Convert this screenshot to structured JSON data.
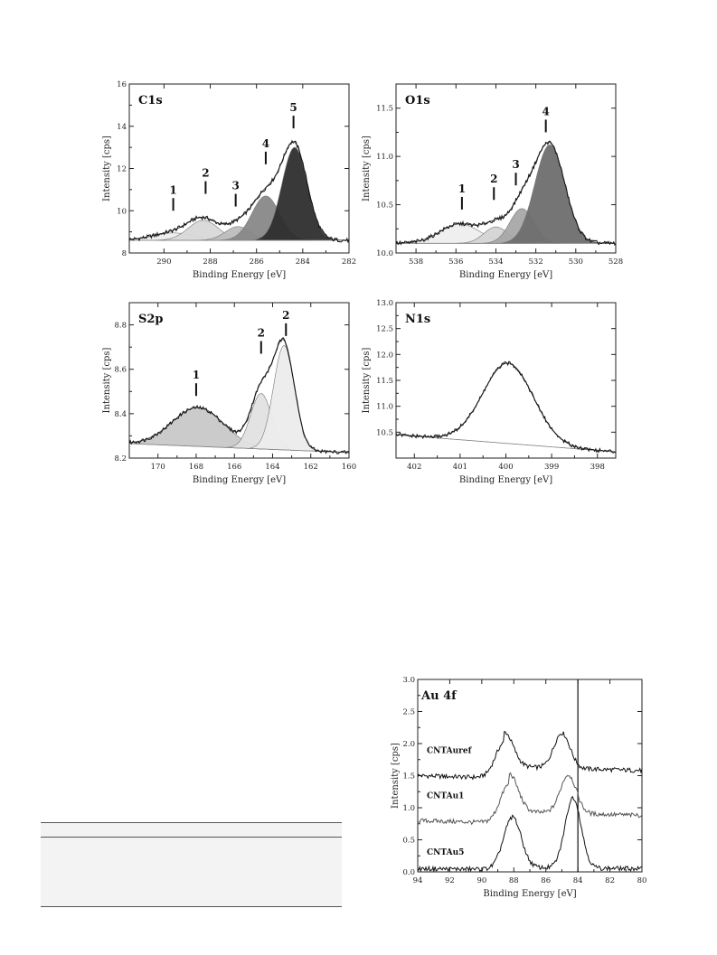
{
  "chart_data": [
    {
      "type": "area",
      "panel_label": "C1s",
      "xlabel": "Binding Energy [eV]",
      "ylabel": "Intensity [cps]",
      "xlim": [
        291.5,
        282
      ],
      "ylim": [
        8,
        16
      ],
      "xticks": [
        290,
        288,
        286,
        284,
        282
      ],
      "yticks": [
        8,
        10,
        12,
        14,
        16
      ],
      "background": 8.6,
      "peaks": [
        {
          "label": "1",
          "center": 289.6,
          "height": 0.35,
          "width": 0.9,
          "fill": "#eeeeee"
        },
        {
          "label": "2",
          "center": 288.3,
          "height": 0.95,
          "width": 0.65,
          "fill": "#d8d8d8"
        },
        {
          "label": "3",
          "center": 286.8,
          "height": 0.65,
          "width": 0.55,
          "fill": "#bdbdbd"
        },
        {
          "label": "4",
          "center": 285.6,
          "height": 2.1,
          "width": 0.6,
          "fill": "#888888"
        },
        {
          "label": "5",
          "center": 284.35,
          "height": 4.4,
          "width": 0.55,
          "fill": "#2e2e2e"
        }
      ],
      "markers": [
        {
          "label": "1",
          "x": 289.6,
          "y": 10.0
        },
        {
          "label": "2",
          "x": 288.2,
          "y": 10.8
        },
        {
          "label": "3",
          "x": 286.9,
          "y": 10.2
        },
        {
          "label": "4",
          "x": 285.6,
          "y": 12.2
        },
        {
          "label": "5",
          "x": 284.4,
          "y": 13.9
        }
      ]
    },
    {
      "type": "area",
      "panel_label": "O1s",
      "xlabel": "Binding Energy [eV]",
      "ylabel": "Intensity [cps]",
      "xlim": [
        539,
        528
      ],
      "ylim": [
        10,
        11.75
      ],
      "xticks": [
        538,
        536,
        534,
        532,
        530,
        528
      ],
      "yticks": [
        10.0,
        10.5,
        11.0,
        11.5
      ],
      "background": 10.1,
      "peaks": [
        {
          "label": "1",
          "center": 535.8,
          "height": 0.2,
          "width": 1.0,
          "fill": "#eeeeee"
        },
        {
          "label": "2",
          "center": 534.0,
          "height": 0.17,
          "width": 0.6,
          "fill": "#d4d4d4"
        },
        {
          "label": "3",
          "center": 532.7,
          "height": 0.36,
          "width": 0.6,
          "fill": "#a8a8a8"
        },
        {
          "label": "4",
          "center": 531.3,
          "height": 1.02,
          "width": 0.75,
          "fill": "#6e6e6e"
        }
      ],
      "markers": [
        {
          "label": "1",
          "x": 535.7,
          "y": 10.45
        },
        {
          "label": "2",
          "x": 534.1,
          "y": 10.55
        },
        {
          "label": "3",
          "x": 533.0,
          "y": 10.7
        },
        {
          "label": "4",
          "x": 531.5,
          "y": 11.25
        }
      ]
    },
    {
      "type": "area",
      "panel_label": "S2p",
      "xlabel": "Binding Energy [eV]",
      "ylabel": "Intensity [cps]",
      "xlim": [
        171.5,
        160
      ],
      "ylim": [
        8.2,
        8.9
      ],
      "xticks": [
        170,
        168,
        166,
        164,
        162,
        160
      ],
      "yticks": [
        8.2,
        8.4,
        8.6,
        8.8
      ],
      "background_start": 8.265,
      "background_end": 8.225,
      "peaks": [
        {
          "label": "1",
          "center": 167.9,
          "height": 0.175,
          "width": 1.35,
          "fill": "#c8c8c8"
        },
        {
          "label": "2",
          "center": 164.6,
          "height": 0.25,
          "width": 0.55,
          "fill": "#e2e2e2"
        },
        {
          "label": "2",
          "center": 163.4,
          "height": 0.47,
          "width": 0.55,
          "fill": "#ececec"
        }
      ],
      "markers": [
        {
          "label": "1",
          "x": 168.0,
          "y": 8.48
        },
        {
          "label": "2",
          "x": 164.6,
          "y": 8.67
        },
        {
          "label": "2",
          "x": 163.3,
          "y": 8.75
        }
      ]
    },
    {
      "type": "line",
      "panel_label": "N1s",
      "xlabel": "Binding Energy [eV]",
      "ylabel": "Intensity [cps]",
      "xlim": [
        402.4,
        397.6
      ],
      "ylim": [
        10,
        13
      ],
      "xticks": [
        402,
        401,
        400,
        399,
        398
      ],
      "yticks": [
        10.5,
        11.0,
        11.5,
        12.0,
        12.5,
        13.0
      ],
      "background_start": 10.45,
      "background_end": 10.12,
      "peaks": [
        {
          "label": "",
          "center": 399.95,
          "height": 1.55,
          "width": 0.55,
          "fill": "none"
        }
      ],
      "markers": []
    },
    {
      "type": "line",
      "panel_label": "Au 4f",
      "xlabel": "Binding Energy [eV]",
      "ylabel": "Intensity [cps]",
      "xlim": [
        94,
        80
      ],
      "ylim": [
        0,
        3.0
      ],
      "xticks": [
        94,
        92,
        90,
        88,
        86,
        84,
        82,
        80
      ],
      "yticks": [
        0.0,
        0.5,
        1.0,
        1.5,
        2.0,
        2.5,
        3.0
      ],
      "reference_line": 84.0,
      "series": [
        {
          "name": "CNTAuref",
          "baseline_left": 1.5,
          "baseline_right": 1.4,
          "step": 0.3,
          "peak1": {
            "center": 88.6,
            "height": 0.55
          },
          "peak2": {
            "center": 85.0,
            "height": 0.55
          }
        },
        {
          "name": "CNTAu1",
          "baseline_left": 0.8,
          "baseline_right": 0.7,
          "step": 0.3,
          "peak1": {
            "center": 88.3,
            "height": 0.6
          },
          "peak2": {
            "center": 84.6,
            "height": 0.6
          }
        },
        {
          "name": "CNTAu5",
          "baseline_left": 0.05,
          "baseline_right": 0.02,
          "step": 0.05,
          "peak1": {
            "center": 88.1,
            "height": 0.8
          },
          "peak2": {
            "center": 84.3,
            "height": 1.1
          }
        }
      ]
    }
  ]
}
